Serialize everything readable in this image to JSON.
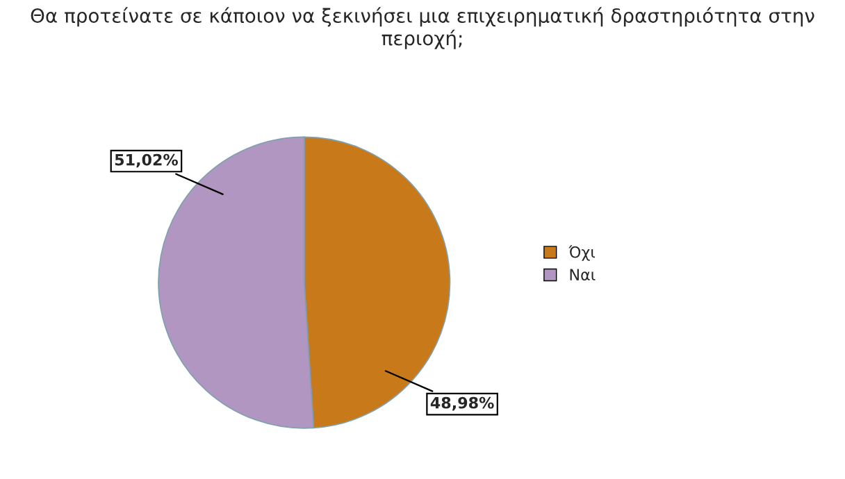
{
  "chart_data": {
    "type": "pie",
    "title": "Θα προτείνατε σε κάποιον να ξεκινήσει μια επιχειρηματική δραστηριότητα στην περιοχή;",
    "categories": [
      "Όχι",
      "Ναι"
    ],
    "values": [
      48.98,
      51.02
    ],
    "colors": [
      "#c87a1a",
      "#b096c0"
    ],
    "value_labels": [
      "48,98%",
      "51,02%"
    ],
    "legend": "right"
  }
}
